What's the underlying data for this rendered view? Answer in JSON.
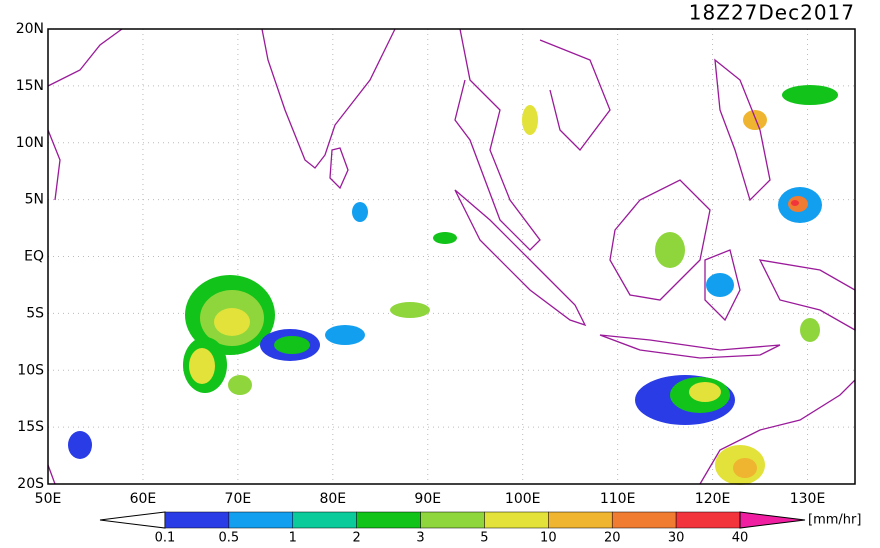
{
  "title": "18Z27Dec2017",
  "lat_labels": [
    "20N",
    "15N",
    "10N",
    "5N",
    "EQ",
    "5S",
    "10S",
    "15S",
    "20S"
  ],
  "lon_labels": [
    "50E",
    "60E",
    "70E",
    "80E",
    "90E",
    "100E",
    "110E",
    "120E",
    "130E"
  ],
  "colorbar": {
    "labels": [
      "0.1",
      "0.5",
      "1",
      "2",
      "3",
      "5",
      "10",
      "20",
      "30",
      "40"
    ],
    "colors": [
      "#2a3ce6",
      "#139ff0",
      "#0ccb9a",
      "#12c31a",
      "#8fd63c",
      "#e2e23a",
      "#efb430",
      "#f07c32",
      "#f2343c"
    ],
    "under_color": "#ffffff",
    "over_color": "#f01ea0",
    "unit": "[mm/hr]"
  }
}
